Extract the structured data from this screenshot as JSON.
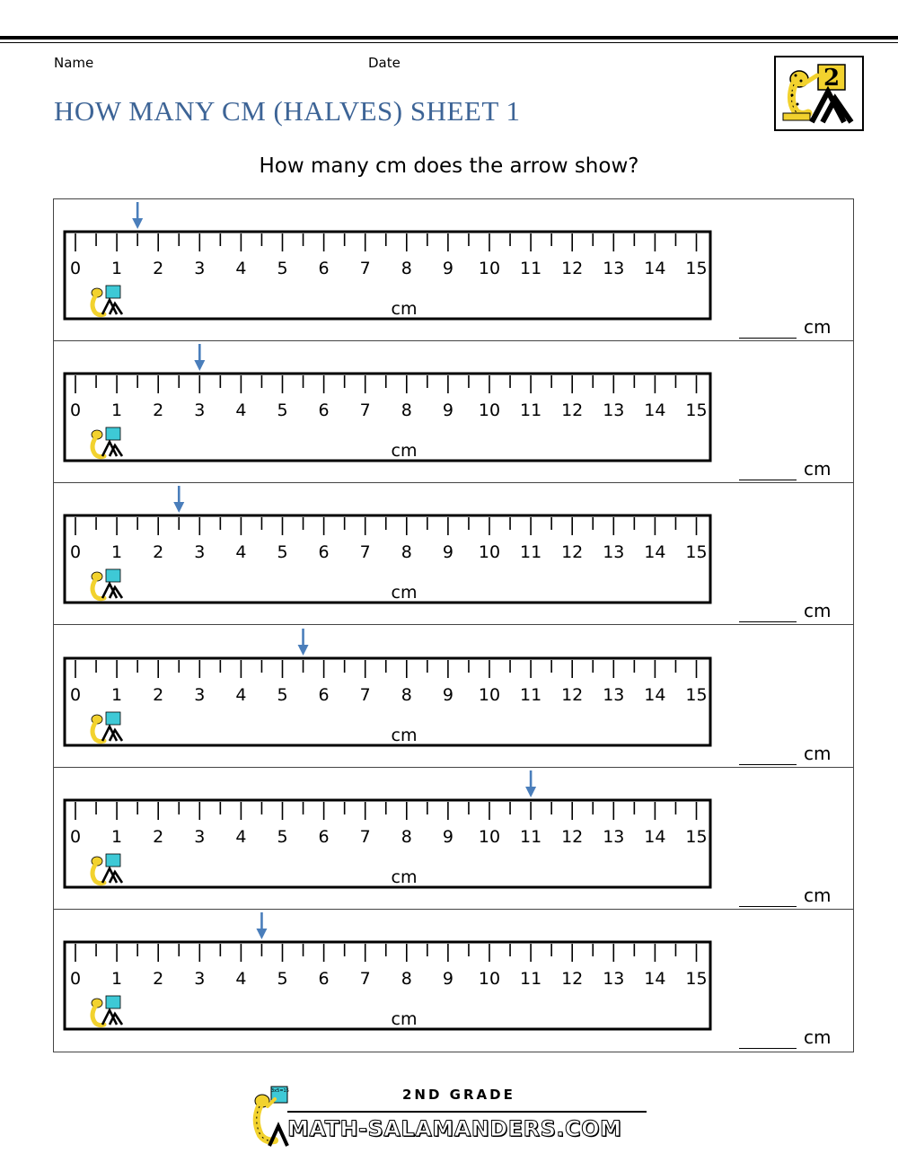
{
  "header": {
    "name_label": "Name",
    "date_label": "Date",
    "title": "HOW MANY CM (HALVES) SHEET 1",
    "logo_text": "2"
  },
  "instruction": "How many cm does the arrow show?",
  "ruler": {
    "labels": [
      "0",
      "1",
      "2",
      "3",
      "4",
      "5",
      "6",
      "7",
      "8",
      "9",
      "10",
      "11",
      "12",
      "13",
      "14",
      "15"
    ],
    "unit_label": "cm",
    "arrow_color": "#4a7ebb"
  },
  "questions": [
    {
      "arrow_value": 1.5,
      "answer_unit": "cm"
    },
    {
      "arrow_value": 3,
      "answer_unit": "cm"
    },
    {
      "arrow_value": 2.5,
      "answer_unit": "cm"
    },
    {
      "arrow_value": 5.5,
      "answer_unit": "cm"
    },
    {
      "arrow_value": 11,
      "answer_unit": "cm"
    },
    {
      "arrow_value": 4.5,
      "answer_unit": "cm"
    }
  ],
  "footer": {
    "grade": "2ND GRADE",
    "site": "MATH-SALAMANDERS.COM",
    "badge_text": "3x5=15"
  },
  "colors": {
    "title": "#3d6496",
    "arrow": "#4a7ebb",
    "salamander": "#f2d22e",
    "board": "#3ec9d6"
  },
  "icons": [
    "salamander-logo-icon",
    "arrow-down-icon",
    "ruler-logo-icon"
  ]
}
